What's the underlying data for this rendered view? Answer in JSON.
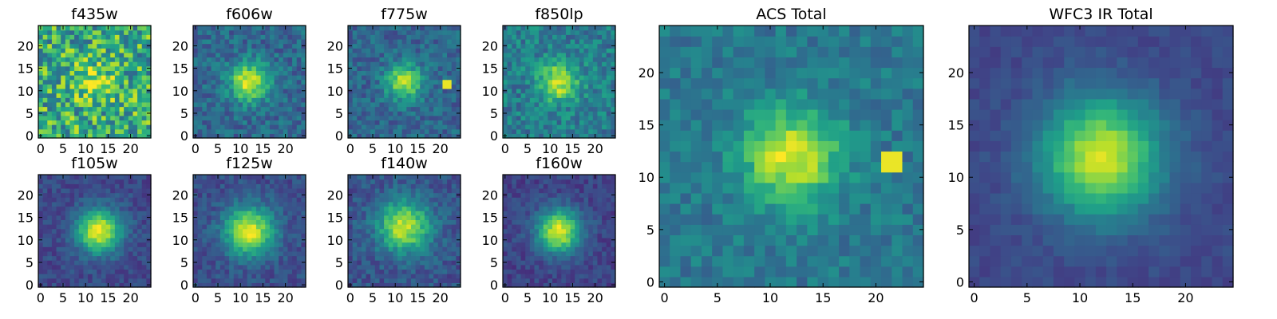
{
  "chart_data": [
    {
      "type": "heatmap",
      "title": "f435w",
      "grid_size": 25,
      "xlim": [
        0,
        24
      ],
      "ylim": [
        0,
        24
      ],
      "xticks": [
        0,
        5,
        10,
        15,
        20
      ],
      "yticks": [
        0,
        5,
        10,
        15,
        20
      ],
      "center": [
        12,
        12
      ],
      "peak": 0.3,
      "sigma": 3.0,
      "noise": 0.6,
      "base": 0.62,
      "hot_pixel": null,
      "seed": 11
    },
    {
      "type": "heatmap",
      "title": "f606w",
      "grid_size": 25,
      "xlim": [
        0,
        24
      ],
      "ylim": [
        0,
        24
      ],
      "xticks": [
        0,
        5,
        10,
        15,
        20
      ],
      "yticks": [
        0,
        5,
        10,
        15,
        20
      ],
      "center": [
        12,
        12
      ],
      "peak": 0.62,
      "sigma": 3.0,
      "noise": 0.26,
      "base": 0.34,
      "hot_pixel": null,
      "seed": 23
    },
    {
      "type": "heatmap",
      "title": "f775w",
      "grid_size": 25,
      "xlim": [
        0,
        24
      ],
      "ylim": [
        0,
        24
      ],
      "xticks": [
        0,
        5,
        10,
        15,
        20
      ],
      "yticks": [
        0,
        5,
        10,
        15,
        20
      ],
      "center": [
        12,
        12
      ],
      "peak": 0.55,
      "sigma": 2.8,
      "noise": 0.24,
      "base": 0.33,
      "hot_pixel": [
        21,
        12
      ],
      "seed": 37
    },
    {
      "type": "heatmap",
      "title": "f850lp",
      "grid_size": 25,
      "xlim": [
        0,
        24
      ],
      "ylim": [
        0,
        24
      ],
      "xticks": [
        0,
        5,
        10,
        15,
        20
      ],
      "yticks": [
        0,
        5,
        10,
        15,
        20
      ],
      "center": [
        12,
        12
      ],
      "peak": 0.5,
      "sigma": 3.0,
      "noise": 0.3,
      "base": 0.42,
      "hot_pixel": null,
      "seed": 41
    },
    {
      "type": "heatmap",
      "title": "f105w",
      "grid_size": 25,
      "xlim": [
        0,
        24
      ],
      "ylim": [
        0,
        24
      ],
      "xticks": [
        0,
        5,
        10,
        15,
        20
      ],
      "yticks": [
        0,
        5,
        10,
        15,
        20
      ],
      "center": [
        13,
        12
      ],
      "peak": 0.75,
      "sigma": 3.4,
      "noise": 0.16,
      "base": 0.22,
      "hot_pixel": null,
      "seed": 53
    },
    {
      "type": "heatmap",
      "title": "f125w",
      "grid_size": 25,
      "xlim": [
        0,
        24
      ],
      "ylim": [
        0,
        24
      ],
      "xticks": [
        0,
        5,
        10,
        15,
        20
      ],
      "yticks": [
        0,
        5,
        10,
        15,
        20
      ],
      "center": [
        12,
        12
      ],
      "peak": 0.72,
      "sigma": 3.8,
      "noise": 0.17,
      "base": 0.24,
      "hot_pixel": null,
      "seed": 67
    },
    {
      "type": "heatmap",
      "title": "f140w",
      "grid_size": 25,
      "xlim": [
        0,
        24
      ],
      "ylim": [
        0,
        24
      ],
      "xticks": [
        0,
        5,
        10,
        15,
        20
      ],
      "yticks": [
        0,
        5,
        10,
        15,
        20
      ],
      "center": [
        12,
        13
      ],
      "peak": 0.66,
      "sigma": 4.0,
      "noise": 0.2,
      "base": 0.26,
      "hot_pixel": null,
      "seed": 79
    },
    {
      "type": "heatmap",
      "title": "f160w",
      "grid_size": 25,
      "xlim": [
        0,
        24
      ],
      "ylim": [
        0,
        24
      ],
      "xticks": [
        0,
        5,
        10,
        15,
        20
      ],
      "yticks": [
        0,
        5,
        10,
        15,
        20
      ],
      "center": [
        12,
        12
      ],
      "peak": 0.75,
      "sigma": 3.4,
      "noise": 0.16,
      "base": 0.2,
      "hot_pixel": null,
      "seed": 83
    },
    {
      "type": "heatmap",
      "title": "ACS Total",
      "grid_size": 25,
      "xlim": [
        0,
        24
      ],
      "ylim": [
        0,
        24
      ],
      "xticks": [
        0,
        5,
        10,
        15,
        20
      ],
      "yticks": [
        0,
        5,
        10,
        15,
        20
      ],
      "center": [
        12,
        12
      ],
      "peak": 0.55,
      "sigma": 3.2,
      "noise": 0.2,
      "base": 0.4,
      "hot_pixel": [
        21,
        12
      ],
      "seed": 97
    },
    {
      "type": "heatmap",
      "title": "WFC3 IR Total",
      "grid_size": 25,
      "xlim": [
        0,
        24
      ],
      "ylim": [
        0,
        24
      ],
      "xticks": [
        0,
        5,
        10,
        15,
        20
      ],
      "yticks": [
        0,
        5,
        10,
        15,
        20
      ],
      "center": [
        12,
        12
      ],
      "peak": 0.7,
      "sigma": 4.0,
      "noise": 0.09,
      "base": 0.22,
      "hot_pixel": null,
      "seed": 101
    }
  ],
  "colormap": [
    "#440154",
    "#482878",
    "#3e4989",
    "#31688e",
    "#26828e",
    "#1f9e89",
    "#35b779",
    "#6ece58",
    "#b5de2b",
    "#fde725"
  ]
}
